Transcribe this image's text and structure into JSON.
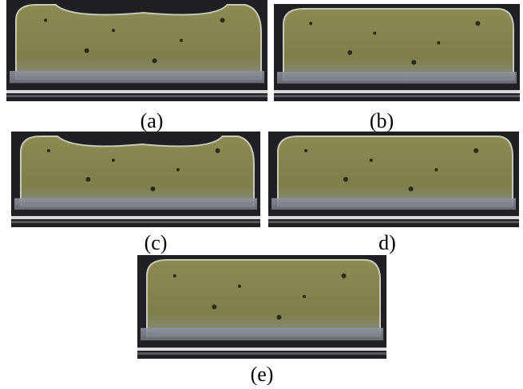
{
  "panels": [
    {
      "label": "(a)"
    },
    {
      "label": "(b)"
    },
    {
      "label": "(c)"
    },
    {
      "label": "d)"
    },
    {
      "label": "(e)"
    }
  ]
}
